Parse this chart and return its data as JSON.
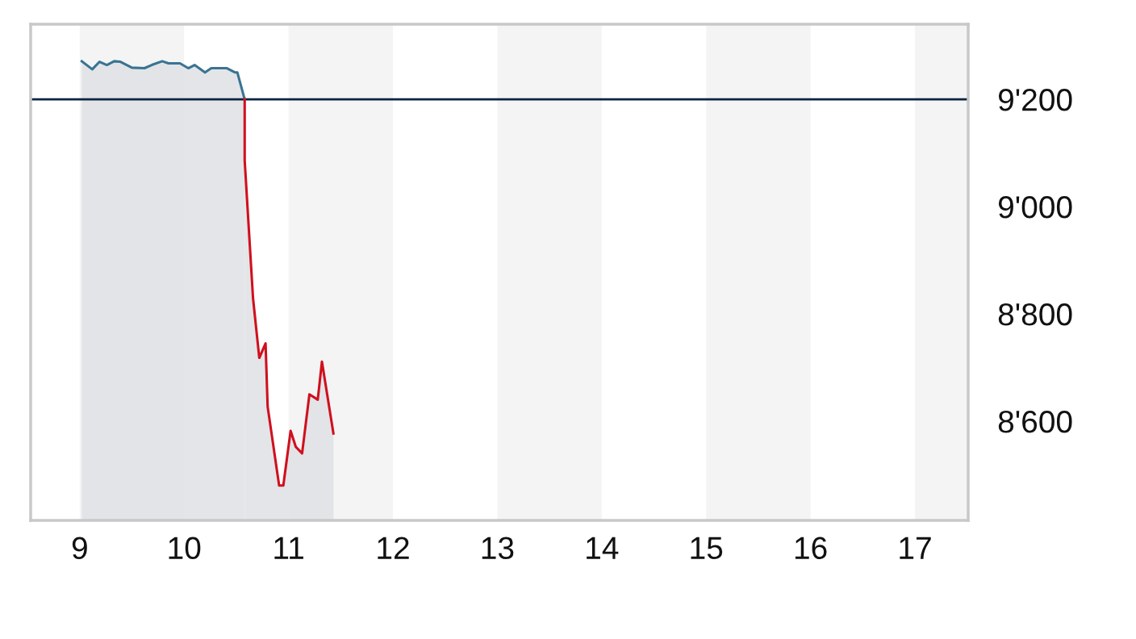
{
  "chart_data": {
    "type": "area",
    "series": [
      {
        "color": "#3a7392",
        "x": [
          9.02,
          9.12,
          9.19,
          9.26,
          9.33,
          9.39,
          9.5,
          9.62,
          9.69,
          9.79,
          9.85,
          9.96,
          10.04,
          10.1,
          10.2,
          10.26,
          10.41,
          10.49,
          10.51,
          10.58
        ],
        "values": [
          9271,
          9256,
          9270,
          9264,
          9271,
          9270,
          9259,
          9258,
          9264,
          9271,
          9267,
          9267,
          9258,
          9264,
          9250,
          9258,
          9258,
          9250,
          9250,
          9200
        ]
      },
      {
        "color": "#d0101e",
        "x": [
          10.58,
          10.58,
          10.66,
          10.72,
          10.78,
          10.8,
          10.91,
          10.95,
          11.02,
          11.07,
          11.13,
          11.2,
          11.28,
          11.32,
          11.43
        ],
        "values": [
          9200,
          9086,
          8829,
          8718,
          8745,
          8627,
          8480,
          8480,
          8582,
          8552,
          8540,
          8650,
          8640,
          8711,
          8577
        ]
      }
    ],
    "xlim": [
      8.53,
      17.51
    ],
    "xticks": [
      9,
      10,
      11,
      12,
      13,
      14,
      15,
      16,
      17
    ],
    "ylim": [
      8415,
      9340
    ],
    "yticks": [
      {
        "value": 8600,
        "label": "8'600"
      },
      {
        "value": 8800,
        "label": "8'800"
      },
      {
        "value": 9000,
        "label": "9'000"
      },
      {
        "value": 9200,
        "label": "9'200"
      }
    ],
    "ref_lines": [
      {
        "axis": "y",
        "value": 9200,
        "color": "#0d2340"
      }
    ],
    "bands": [
      {
        "axis": "x",
        "from": 9,
        "to": 10,
        "color": "#f4f4f5"
      },
      {
        "axis": "x",
        "from": 11,
        "to": 12,
        "color": "#f4f4f5"
      },
      {
        "axis": "x",
        "from": 13,
        "to": 14,
        "color": "#f4f4f5"
      },
      {
        "axis": "x",
        "from": 15,
        "to": 16,
        "color": "#f4f4f5"
      },
      {
        "axis": "x",
        "from": 17,
        "to": 17.51,
        "color": "#f4f4f5"
      }
    ],
    "grid": false,
    "legend": false
  }
}
